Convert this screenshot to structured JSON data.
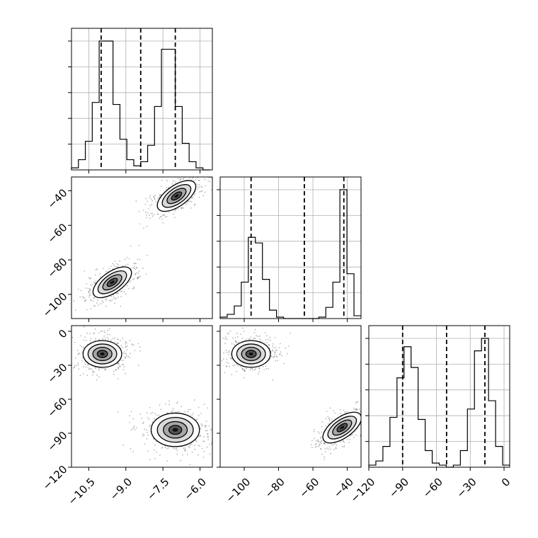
{
  "chart_data": {
    "type": "corner",
    "parameters": [
      {
        "ticks": [
          -10.5,
          -9.0,
          -7.5,
          -6.0
        ],
        "tick_labels": [
          "−10.5",
          "−9.0",
          "−7.5",
          "−6.0"
        ],
        "range": [
          -11.2,
          -5.5
        ]
      },
      {
        "ticks": [
          -100,
          -80,
          -60,
          -40
        ],
        "tick_labels": [
          "−100",
          "−80",
          "−60",
          "−40"
        ],
        "range": [
          -114,
          -32
        ]
      },
      {
        "ticks": [
          -120,
          -90,
          -60,
          -30,
          0
        ],
        "tick_labels": [
          "−120",
          "−90",
          "−60",
          "−30",
          "0"
        ],
        "range": [
          -120,
          5
        ]
      }
    ],
    "histograms": [
      {
        "param": 0,
        "bin_edges": [
          -11.2,
          -10.92,
          -10.64,
          -10.36,
          -10.08,
          -9.8,
          -9.52,
          -9.24,
          -8.96,
          -8.68,
          -8.4,
          -8.12,
          -7.84,
          -7.56,
          -7.28,
          -7.0,
          -6.72,
          -6.44,
          -6.16,
          -5.88,
          -5.6
        ],
        "counts": [
          1,
          5,
          14,
          33,
          63,
          63,
          32,
          15,
          5,
          2,
          4,
          12,
          31,
          59,
          59,
          31,
          13,
          4,
          1,
          0
        ],
        "quantiles": [
          -10.0,
          -8.4,
          -7.0
        ]
      },
      {
        "param": 1,
        "bin_edges": [
          -114,
          -109.9,
          -105.8,
          -101.7,
          -97.6,
          -93.5,
          -89.4,
          -85.3,
          -81.2,
          -77.1,
          -73.0,
          -68.9,
          -64.8,
          -60.7,
          -56.6,
          -52.5,
          -48.4,
          -44.3,
          -40.2,
          -36.1,
          -32
        ],
        "counts": [
          1,
          3,
          9,
          26,
          58,
          54,
          28,
          6,
          1,
          0,
          0,
          0,
          0,
          0,
          1,
          8,
          26,
          92,
          32,
          2
        ],
        "quantiles": [
          -96,
          -65,
          -42
        ]
      },
      {
        "param": 2,
        "bin_edges": [
          -120,
          -113.75,
          -107.5,
          -101.25,
          -95,
          -88.75,
          -82.5,
          -76.25,
          -70,
          -63.75,
          -57.5,
          -51.25,
          -45,
          -38.75,
          -32.5,
          -26.25,
          -20,
          -13.75,
          -7.5,
          -1.25,
          5
        ],
        "counts": [
          1,
          3,
          10,
          24,
          43,
          58,
          48,
          23,
          8,
          2,
          1,
          0,
          1,
          8,
          28,
          56,
          62,
          32,
          10,
          1
        ],
        "quantiles": [
          -90,
          -51,
          -17
        ]
      }
    ],
    "pair_densities": [
      {
        "x_param": 0,
        "y_param": 1,
        "clusters": [
          {
            "cx": -9.55,
            "cy": -93
          },
          {
            "cx": -6.95,
            "cy": -43
          }
        ]
      },
      {
        "x_param": 0,
        "y_param": 2,
        "clusters": [
          {
            "cx": -9.95,
            "cy": -20
          },
          {
            "cx": -7.0,
            "cy": -87
          }
        ]
      },
      {
        "x_param": 1,
        "y_param": 2,
        "clusters": [
          {
            "cx": -96,
            "cy": -20
          },
          {
            "cx": -43,
            "cy": -85
          }
        ]
      }
    ]
  }
}
